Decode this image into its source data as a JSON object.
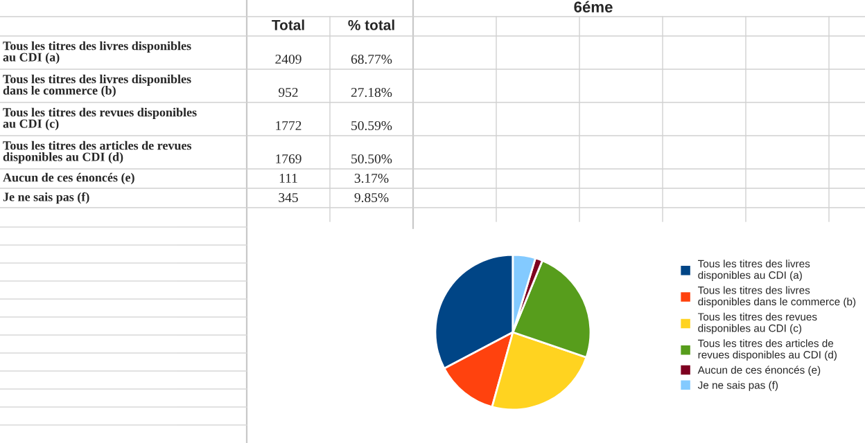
{
  "chart_data": {
    "type": "pie",
    "title": "6éme",
    "categories": [
      "Tous les titres des livres disponibles au CDI (a)",
      "Tous les titres des livres disponibles dans le commerce (b)",
      "Tous les titres des revues disponibles au CDI (c)",
      "Tous les titres des articles de revues disponibles au CDI (d)",
      "Aucun de ces énoncés (e)",
      "Je ne sais pas (f)"
    ],
    "values": [
      32.74,
      12.94,
      24.08,
      24.04,
      1.51,
      4.69
    ],
    "colors": [
      "#004586",
      "#ff420e",
      "#ffd320",
      "#579d1c",
      "#7e0021",
      "#83caff"
    ],
    "annotations": [
      "Total",
      "% total",
      "2409",
      "68.77%",
      "952",
      "27.18%",
      "1772",
      "50.59%",
      "1769",
      "50.50%",
      "111",
      "3.17%",
      "345",
      "9.85%"
    ],
    "legend": "right"
  }
}
